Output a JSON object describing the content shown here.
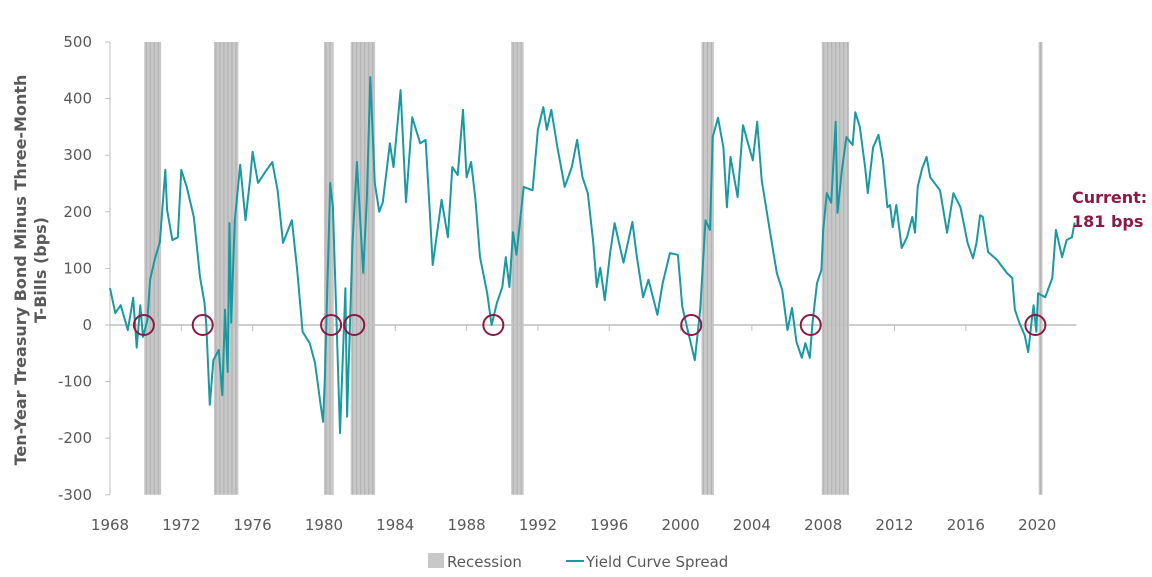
{
  "chart_data": {
    "type": "line",
    "title": "",
    "xlabel": "",
    "ylabel": "Ten-Year Treasury Bond Minus Three-Month T-Bills (bps)",
    "xlim": [
      1968,
      2022.2
    ],
    "ylim": [
      -300,
      500
    ],
    "yticks": [
      500,
      400,
      300,
      200,
      100,
      0,
      -100,
      -200,
      -300
    ],
    "xticks": [
      1968,
      1972,
      1976,
      1980,
      1984,
      1988,
      1992,
      1996,
      2000,
      2004,
      2008,
      2012,
      2016,
      2020
    ],
    "grid": false,
    "legend_position": "bottom",
    "colors": {
      "line": "#1A9AA0",
      "recession": "#C8C8C8",
      "circle": "#8B1A45",
      "annotation": "#8B1A45",
      "axis": "#BFBFBF"
    },
    "legend": [
      {
        "label": "Recession",
        "kind": "bar"
      },
      {
        "label": "Yield Curve Spread",
        "kind": "line"
      }
    ],
    "annotation": {
      "line1": "Current:",
      "line2": "181 bps",
      "year": 2022.1,
      "value": 181
    },
    "recessions": [
      [
        1969.92,
        1970.87
      ],
      [
        1973.83,
        1975.2
      ],
      [
        1980.0,
        1980.55
      ],
      [
        1981.5,
        1982.87
      ],
      [
        1990.5,
        1991.2
      ],
      [
        2001.17,
        2001.87
      ],
      [
        2007.92,
        2009.45
      ],
      [
        2020.08,
        2020.3
      ]
    ],
    "inversion_markers": [
      1969.9,
      1973.2,
      1980.4,
      1981.7,
      1989.5,
      2000.6,
      2007.3,
      2019.9
    ],
    "series": [
      {
        "name": "Yield Curve Spread",
        "points": [
          [
            1968.0,
            65
          ],
          [
            1968.3,
            21
          ],
          [
            1968.6,
            35
          ],
          [
            1969.0,
            -9
          ],
          [
            1969.3,
            48
          ],
          [
            1969.5,
            -40
          ],
          [
            1969.7,
            35
          ],
          [
            1969.85,
            -21
          ],
          [
            1970.1,
            9
          ],
          [
            1970.25,
            80
          ],
          [
            1970.5,
            115
          ],
          [
            1970.8,
            147
          ],
          [
            1971.1,
            274
          ],
          [
            1971.2,
            203
          ],
          [
            1971.5,
            150
          ],
          [
            1971.8,
            155
          ],
          [
            1972.0,
            274
          ],
          [
            1972.3,
            244
          ],
          [
            1972.7,
            191
          ],
          [
            1973.05,
            85
          ],
          [
            1973.3,
            39
          ],
          [
            1973.4,
            0
          ],
          [
            1973.6,
            -141
          ],
          [
            1973.8,
            -62
          ],
          [
            1974.1,
            -44
          ],
          [
            1974.3,
            -124
          ],
          [
            1974.45,
            27
          ],
          [
            1974.6,
            -83
          ],
          [
            1974.7,
            180
          ],
          [
            1974.8,
            4
          ],
          [
            1975.0,
            185
          ],
          [
            1975.3,
            283
          ],
          [
            1975.6,
            185
          ],
          [
            1975.85,
            256
          ],
          [
            1976.0,
            306
          ],
          [
            1976.3,
            251
          ],
          [
            1976.7,
            270
          ],
          [
            1977.1,
            288
          ],
          [
            1977.4,
            238
          ],
          [
            1977.7,
            145
          ],
          [
            1978.2,
            185
          ],
          [
            1978.5,
            97
          ],
          [
            1978.8,
            -12
          ],
          [
            1979.2,
            -32
          ],
          [
            1979.5,
            -67
          ],
          [
            1979.8,
            -138
          ],
          [
            1979.95,
            -171
          ],
          [
            1980.05,
            -92
          ],
          [
            1980.35,
            251
          ],
          [
            1980.5,
            208
          ],
          [
            1980.7,
            14
          ],
          [
            1980.9,
            -191
          ],
          [
            1981.2,
            65
          ],
          [
            1981.3,
            -162
          ],
          [
            1981.6,
            145
          ],
          [
            1981.85,
            288
          ],
          [
            1982.2,
            92
          ],
          [
            1982.4,
            221
          ],
          [
            1982.6,
            438
          ],
          [
            1982.85,
            251
          ],
          [
            1983.1,
            200
          ],
          [
            1983.3,
            217
          ],
          [
            1983.7,
            321
          ],
          [
            1983.9,
            279
          ],
          [
            1984.3,
            415
          ],
          [
            1984.6,
            217
          ],
          [
            1984.95,
            367
          ],
          [
            1985.4,
            321
          ],
          [
            1985.7,
            327
          ],
          [
            1985.95,
            194
          ],
          [
            1986.1,
            106
          ],
          [
            1986.6,
            221
          ],
          [
            1986.95,
            155
          ],
          [
            1987.2,
            279
          ],
          [
            1987.5,
            265
          ],
          [
            1987.8,
            380
          ],
          [
            1988.0,
            261
          ],
          [
            1988.25,
            288
          ],
          [
            1988.5,
            221
          ],
          [
            1988.75,
            120
          ],
          [
            1989.15,
            57
          ],
          [
            1989.4,
            0
          ],
          [
            1989.7,
            39
          ],
          [
            1990.0,
            67
          ],
          [
            1990.2,
            120
          ],
          [
            1990.4,
            67
          ],
          [
            1990.6,
            164
          ],
          [
            1990.8,
            124
          ],
          [
            1991.2,
            244
          ],
          [
            1991.7,
            238
          ],
          [
            1992.0,
            345
          ],
          [
            1992.3,
            385
          ],
          [
            1992.5,
            345
          ],
          [
            1992.75,
            380
          ],
          [
            1993.1,
            313
          ],
          [
            1993.5,
            244
          ],
          [
            1993.9,
            279
          ],
          [
            1994.2,
            327
          ],
          [
            1994.5,
            261
          ],
          [
            1994.8,
            233
          ],
          [
            1995.1,
            147
          ],
          [
            1995.3,
            67
          ],
          [
            1995.5,
            101
          ],
          [
            1995.75,
            44
          ],
          [
            1996.05,
            127
          ],
          [
            1996.3,
            180
          ],
          [
            1996.8,
            110
          ],
          [
            1997.3,
            182
          ],
          [
            1997.55,
            120
          ],
          [
            1997.9,
            49
          ],
          [
            1998.2,
            80
          ],
          [
            1998.7,
            18
          ],
          [
            1999.0,
            74
          ],
          [
            1999.4,
            127
          ],
          [
            1999.85,
            124
          ],
          [
            2000.1,
            32
          ],
          [
            2000.4,
            -9
          ],
          [
            2000.8,
            -62
          ],
          [
            2001.1,
            27
          ],
          [
            2001.4,
            185
          ],
          [
            2001.65,
            168
          ],
          [
            2001.8,
            332
          ],
          [
            2002.1,
            366
          ],
          [
            2002.4,
            314
          ],
          [
            2002.6,
            208
          ],
          [
            2002.8,
            297
          ],
          [
            2003.2,
            226
          ],
          [
            2003.5,
            353
          ],
          [
            2004.05,
            291
          ],
          [
            2004.3,
            359
          ],
          [
            2004.55,
            256
          ],
          [
            2005.0,
            168
          ],
          [
            2005.4,
            92
          ],
          [
            2005.7,
            62
          ],
          [
            2006.0,
            -9
          ],
          [
            2006.25,
            30
          ],
          [
            2006.5,
            -30
          ],
          [
            2006.8,
            -58
          ],
          [
            2007.0,
            -32
          ],
          [
            2007.25,
            -58
          ],
          [
            2007.4,
            4
          ],
          [
            2007.65,
            74
          ],
          [
            2007.9,
            97
          ],
          [
            2008.0,
            168
          ],
          [
            2008.2,
            233
          ],
          [
            2008.45,
            216
          ],
          [
            2008.7,
            359
          ],
          [
            2008.8,
            198
          ],
          [
            2009.05,
            274
          ],
          [
            2009.3,
            332
          ],
          [
            2009.65,
            318
          ],
          [
            2009.8,
            376
          ],
          [
            2010.05,
            350
          ],
          [
            2010.35,
            279
          ],
          [
            2010.5,
            233
          ],
          [
            2010.8,
            314
          ],
          [
            2011.1,
            336
          ],
          [
            2011.35,
            291
          ],
          [
            2011.6,
            208
          ],
          [
            2011.75,
            212
          ],
          [
            2011.9,
            173
          ],
          [
            2012.1,
            212
          ],
          [
            2012.4,
            136
          ],
          [
            2012.7,
            155
          ],
          [
            2013.0,
            191
          ],
          [
            2013.15,
            163
          ],
          [
            2013.3,
            244
          ],
          [
            2013.55,
            277
          ],
          [
            2013.8,
            297
          ],
          [
            2014.0,
            261
          ],
          [
            2014.55,
            238
          ],
          [
            2014.95,
            163
          ],
          [
            2015.3,
            233
          ],
          [
            2015.7,
            208
          ],
          [
            2016.1,
            145
          ],
          [
            2016.4,
            118
          ],
          [
            2016.6,
            145
          ],
          [
            2016.8,
            194
          ],
          [
            2016.95,
            191
          ],
          [
            2017.25,
            129
          ],
          [
            2017.75,
            115
          ],
          [
            2018.3,
            92
          ],
          [
            2018.6,
            83
          ],
          [
            2018.75,
            27
          ],
          [
            2019.0,
            4
          ],
          [
            2019.3,
            -18
          ],
          [
            2019.5,
            -48
          ],
          [
            2019.7,
            9
          ],
          [
            2019.8,
            35
          ],
          [
            2019.95,
            -12
          ],
          [
            2020.05,
            56
          ],
          [
            2020.45,
            49
          ],
          [
            2020.85,
            83
          ],
          [
            2021.05,
            168
          ],
          [
            2021.4,
            120
          ],
          [
            2021.65,
            150
          ],
          [
            2021.95,
            155
          ],
          [
            2022.1,
            181
          ]
        ]
      }
    ]
  }
}
